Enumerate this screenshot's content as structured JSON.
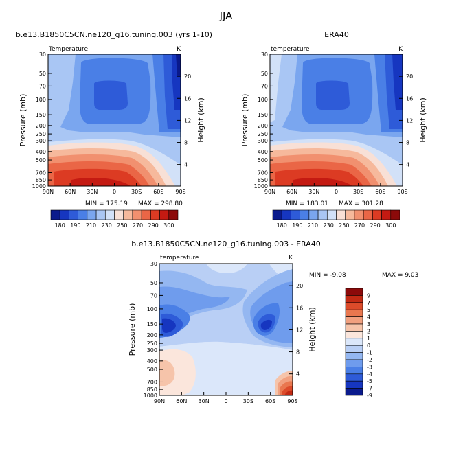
{
  "page_title": "JJA",
  "colors": {
    "model_scale": [
      "#0a1a8c",
      "#1636c0",
      "#2e5bd8",
      "#4a7fe6",
      "#7aa6ef",
      "#a9c6f4",
      "#d2e1f8",
      "#f8e0d6",
      "#f6b99c",
      "#f1906f",
      "#ea6646",
      "#dc3b23",
      "#c41a12",
      "#8c0a0a"
    ],
    "diff_scale": [
      "#0a1a8c",
      "#1636c0",
      "#2e5bd8",
      "#4a7fe6",
      "#6f9ced",
      "#94b7f1",
      "#b9cff5",
      "#dbe7fa",
      "#fbe6dc",
      "#f6c4aa",
      "#f1a07f",
      "#e9774f",
      "#dc4b2a",
      "#c22a14",
      "#8c0a0a"
    ]
  },
  "chart_data": [
    {
      "id": "model",
      "type": "heatmap",
      "title": "b.e13.B1850C5CN.ne120_g16.tuning.003 (yrs 1-10)",
      "left_subtitle": "Temperature",
      "right_subtitle": "K",
      "xlabel": "",
      "ylabel": "Pressure (mb)",
      "y2label": "Height (km)",
      "xticks": [
        "90N",
        "60N",
        "30N",
        "0",
        "30S",
        "60S",
        "90S"
      ],
      "yticks": [
        "30",
        "50",
        "70",
        "100",
        "150",
        "200",
        "250",
        "300",
        "400",
        "500",
        "700",
        "850",
        "1000"
      ],
      "y2ticks": [
        "20",
        "16",
        "12",
        "8",
        "4"
      ],
      "min_label": "MIN = 175.19",
      "max_label": "MAX = 298.80",
      "min": 175.19,
      "max": 298.8,
      "colorbar_labels": [
        "180",
        "190",
        "210",
        "230",
        "250",
        "270",
        "290",
        "300"
      ]
    },
    {
      "id": "obs",
      "type": "heatmap",
      "title": "ERA40",
      "left_subtitle": "temperature",
      "right_subtitle": "K",
      "xlabel": "",
      "ylabel": "Pressure (mb)",
      "y2label": "Height (km)",
      "xticks": [
        "90N",
        "60N",
        "30N",
        "0",
        "30S",
        "60S",
        "90S"
      ],
      "yticks": [
        "30",
        "50",
        "70",
        "100",
        "150",
        "200",
        "250",
        "300",
        "400",
        "500",
        "700",
        "850",
        "1000"
      ],
      "y2ticks": [
        "20",
        "16",
        "12",
        "8",
        "4"
      ],
      "min_label": "MIN = 183.01",
      "max_label": "MAX = 301.28",
      "min": 183.01,
      "max": 301.28,
      "colorbar_labels": [
        "180",
        "190",
        "210",
        "230",
        "250",
        "270",
        "290",
        "300"
      ]
    },
    {
      "id": "diff",
      "type": "heatmap",
      "title": "b.e13.B1850C5CN.ne120_g16.tuning.003 - ERA40",
      "left_subtitle": "temperature",
      "right_subtitle": "K",
      "xlabel": "",
      "ylabel": "Pressure (mb)",
      "y2label": "Height (km)",
      "xticks": [
        "90N",
        "60N",
        "30N",
        "0",
        "30S",
        "60S",
        "90S"
      ],
      "yticks": [
        "30",
        "50",
        "70",
        "100",
        "150",
        "200",
        "250",
        "300",
        "400",
        "500",
        "700",
        "850",
        "1000"
      ],
      "y2ticks": [
        "20",
        "16",
        "12",
        "8",
        "4"
      ],
      "min_label": "MIN =   -9.08",
      "max_label": "MAX =    9.03",
      "min": -9.08,
      "max": 9.03,
      "colorbar_labels": [
        "9",
        "7",
        "5",
        "4",
        "3",
        "2",
        "1",
        "0",
        "-1",
        "-2",
        "-3",
        "-4",
        "-5",
        "-7",
        "-9"
      ]
    }
  ]
}
